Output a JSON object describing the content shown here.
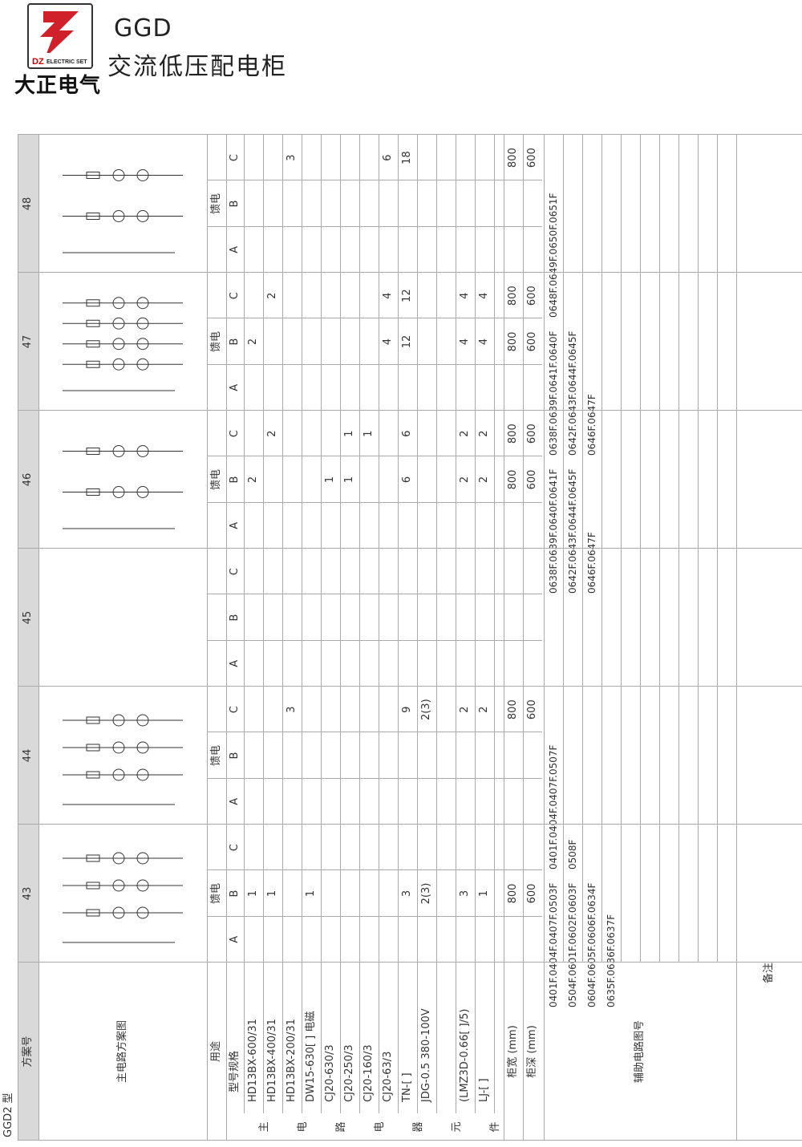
{
  "header": {
    "logo_text": "DZELECTRIC SET",
    "logo_letters": "DZ",
    "company": "大正电气",
    "model": "GGD",
    "product": "交流低压配电柜"
  },
  "table": {
    "type_label": "GGD2 型",
    "scheme_no_label": "方案号",
    "circuit_label": "主电路方案图",
    "usage_label": "用途",
    "spec_label": "型号规格",
    "main_elements_label": [
      "主",
      "电",
      "路",
      "电",
      "器",
      "元",
      "件"
    ],
    "width_label": "柜宽 (mm)",
    "depth_label": "柜深 (mm)",
    "aux_label": "辅助电路图号",
    "remark_label": "备注",
    "components": [
      "HD13BX-600/31",
      "HD13BX-400/31",
      "HD13BX-200/31",
      "DW15-630[ ] 电磁",
      "CJ20-630/3",
      "CJ20-250/3",
      "CJ20-160/3",
      "CJ20-63/3",
      "TN-[ ]",
      "JDG-0.5 380-100V",
      "",
      "(LMZ3D-0.66[ ]/5)",
      "LJ-[ ]"
    ],
    "schemes": [
      {
        "no": "43",
        "usage": "馈电",
        "subs": [
          "A",
          "B",
          "C"
        ],
        "values": {
          "B": [
            "1",
            "1",
            "",
            "1",
            "",
            "",
            "",
            "",
            "3",
            "2(3)",
            "",
            "3",
            "1"
          ]
        },
        "width": {
          "B": "800"
        },
        "depth": {
          "B": "600"
        },
        "aux": [
          "0401F.0404F.0407F.0503F",
          "0504F.0601F.0602F.0603F",
          "0604F.0605F.0606F.0634F",
          "0635F.0636F.0637F"
        ]
      },
      {
        "no": "44",
        "usage": "馈电",
        "subs": [
          "A",
          "B",
          "C"
        ],
        "values": {
          "C": [
            "",
            "",
            "3",
            "",
            "",
            "",
            "",
            "",
            "9",
            "2(3)",
            "",
            "2",
            "2"
          ]
        },
        "width": {
          "C": "800"
        },
        "depth": {
          "C": "600"
        },
        "aux": [
          "0401F.0404F.0407F.0507F",
          "0508F"
        ]
      },
      {
        "no": "45",
        "usage": "",
        "subs": [
          "A",
          "B",
          "C"
        ],
        "values": {},
        "width": {},
        "depth": {},
        "aux": []
      },
      {
        "no": "46",
        "usage": "馈电",
        "subs": [
          "A",
          "B",
          "C"
        ],
        "values": {
          "B": [
            "2",
            "",
            "",
            "",
            "1",
            "1",
            "",
            "",
            "6",
            "",
            "",
            "2",
            "2"
          ],
          "C": [
            "",
            "2",
            "",
            "",
            "",
            "1",
            "1",
            "",
            "6",
            "",
            "",
            "2",
            "2"
          ]
        },
        "width": {
          "B": "800",
          "C": "800"
        },
        "depth": {
          "B": "600",
          "C": "600"
        },
        "aux": [
          "0638F.0639F.0640F.0641F",
          "0642F.0643F.0644F.0645F",
          "0646F.0647F"
        ]
      },
      {
        "no": "47",
        "usage": "馈电",
        "subs": [
          "A",
          "B",
          "C"
        ],
        "values": {
          "B": [
            "2",
            "",
            "",
            "",
            "",
            "",
            "",
            "4",
            "12",
            "",
            "",
            "4",
            "4"
          ],
          "C": [
            "",
            "2",
            "",
            "",
            "",
            "",
            "",
            "4",
            "12",
            "",
            "",
            "4",
            "4"
          ]
        },
        "width": {
          "B": "800",
          "C": "800"
        },
        "depth": {
          "B": "600",
          "C": "600"
        },
        "aux": [
          "0638F.0639F.0641F.0640F",
          "0642F.0643F.0644F.0645F",
          "0646F.0647F"
        ]
      },
      {
        "no": "48",
        "usage": "馈电",
        "subs": [
          "A",
          "B",
          "C"
        ],
        "values": {
          "C": [
            "",
            "",
            "3",
            "",
            "",
            "",
            "",
            "6",
            "18",
            "",
            "",
            "",
            ""
          ]
        },
        "width": {
          "C": "800"
        },
        "depth": {
          "C": "600"
        },
        "aux": [
          "0648F.0649F.0650F.0651F"
        ]
      }
    ]
  }
}
